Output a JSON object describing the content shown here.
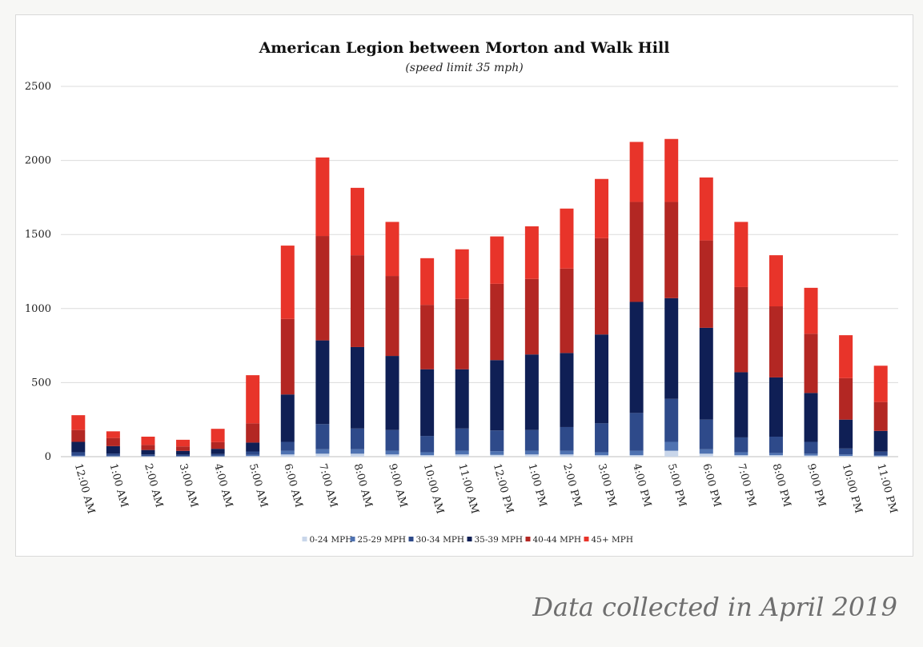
{
  "chart_data": {
    "type": "bar",
    "stacked": true,
    "title": "American Legion between Morton and Walk Hill",
    "subtitle": "(speed limit 35 mph)",
    "xlabel": "",
    "ylabel": "",
    "ylim": [
      0,
      2500
    ],
    "yticks": [
      0,
      500,
      1000,
      1500,
      2000,
      2500
    ],
    "grid": true,
    "legend_position": "bottom",
    "categories": [
      "12:00 AM",
      "1:00 AM",
      "2:00 AM",
      "3:00 AM",
      "4:00 AM",
      "5:00 AM",
      "6:00 AM",
      "7:00 AM",
      "8:00 AM",
      "9:00 AM",
      "10:00 AM",
      "11:00 AM",
      "12:00 PM",
      "1:00 PM",
      "2:00 PM",
      "3:00 PM",
      "4:00 PM",
      "5:00 PM",
      "6:00 PM",
      "7:00 PM",
      "8:00 PM",
      "9:00 PM",
      "10:00 PM",
      "11:00 PM"
    ],
    "series": [
      {
        "name": "0-24 MPH",
        "color": "#c9d6ea",
        "values": [
          3,
          2,
          2,
          1,
          2,
          4,
          15,
          20,
          20,
          15,
          10,
          15,
          12,
          15,
          15,
          10,
          10,
          40,
          20,
          10,
          10,
          8,
          5,
          3
        ]
      },
      {
        "name": "25-29 MPH",
        "color": "#4f72b1",
        "values": [
          5,
          4,
          3,
          3,
          4,
          8,
          25,
          30,
          30,
          25,
          20,
          25,
          25,
          25,
          25,
          20,
          30,
          60,
          30,
          20,
          15,
          12,
          10,
          6
        ]
      },
      {
        "name": "30-34 MPH",
        "color": "#2e4a8a",
        "values": [
          22,
          15,
          10,
          10,
          12,
          23,
          60,
          170,
          140,
          140,
          110,
          150,
          140,
          140,
          160,
          195,
          255,
          290,
          200,
          100,
          110,
          80,
          40,
          25
        ]
      },
      {
        "name": "35-39 MPH",
        "color": "#0f1f55",
        "values": [
          70,
          50,
          30,
          25,
          35,
          60,
          320,
          565,
          550,
          500,
          450,
          400,
          475,
          510,
          500,
          600,
          750,
          680,
          620,
          440,
          400,
          330,
          195,
          140
        ]
      },
      {
        "name": "40-44 MPH",
        "color": "#b32723",
        "values": [
          80,
          55,
          35,
          30,
          45,
          130,
          510,
          705,
          620,
          540,
          435,
          475,
          515,
          510,
          570,
          650,
          675,
          650,
          590,
          575,
          480,
          400,
          280,
          195
        ]
      },
      {
        "name": "45+ MPH",
        "color": "#e8342a",
        "values": [
          100,
          45,
          55,
          45,
          90,
          325,
          495,
          530,
          455,
          365,
          315,
          335,
          320,
          355,
          405,
          400,
          405,
          425,
          425,
          440,
          345,
          310,
          290,
          245
        ]
      }
    ]
  },
  "caption": "Data collected in April 2019"
}
